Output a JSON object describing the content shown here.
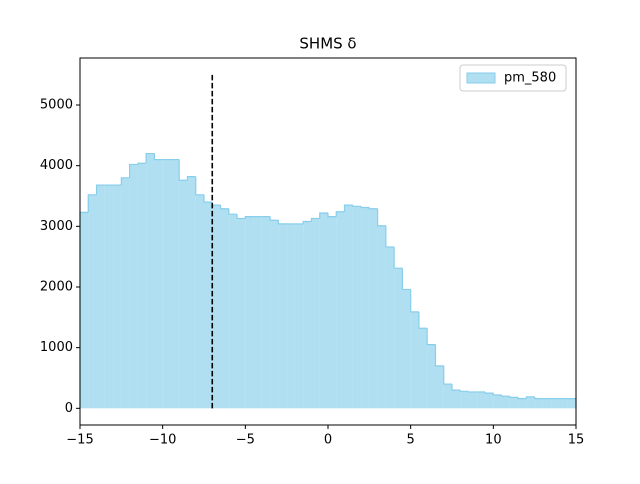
{
  "chart_data": {
    "type": "histogram",
    "title": "SHMS δ",
    "bins": [
      -15,
      -14.5,
      -14,
      -13.5,
      -13,
      -12.5,
      -12,
      -11.5,
      -11,
      -10.5,
      -10,
      -9.5,
      -9,
      -8.5,
      -8,
      -7.5,
      -7,
      -6.5,
      -6,
      -5.5,
      -5,
      -4.5,
      -4,
      -3.5,
      -3,
      -2.5,
      -2,
      -1.5,
      -1,
      -0.5,
      0,
      0.5,
      1,
      1.5,
      2,
      2.5,
      3,
      3.5,
      4,
      4.5,
      5,
      5.5,
      6,
      6.5,
      7,
      7.5,
      8,
      8.5,
      9,
      9.5,
      10,
      10.5,
      11,
      11.5,
      12,
      12.5,
      13,
      13.5,
      14,
      14.5,
      15
    ],
    "series": [
      {
        "name": "pm_580",
        "color": "#87ceeb",
        "values": [
          3230,
          3520,
          3680,
          3680,
          3680,
          3800,
          4020,
          4040,
          4200,
          4100,
          4100,
          4100,
          3760,
          3820,
          3520,
          3400,
          3350,
          3290,
          3200,
          3130,
          3160,
          3160,
          3160,
          3100,
          3040,
          3040,
          3040,
          3080,
          3130,
          3220,
          3160,
          3240,
          3350,
          3330,
          3310,
          3290,
          3010,
          2660,
          2310,
          1960,
          1590,
          1320,
          1050,
          700,
          400,
          300,
          280,
          270,
          270,
          250,
          220,
          200,
          180,
          160,
          190,
          160,
          160,
          160,
          160,
          160
        ]
      }
    ],
    "vline": {
      "x": -7,
      "ymin": 0,
      "ymax": 5500,
      "color": "#000000"
    },
    "xlim": [
      -15,
      15
    ],
    "xticks": [
      {
        "value": -15,
        "label": "−15"
      },
      {
        "value": -10,
        "label": "−10"
      },
      {
        "value": -5,
        "label": "−5"
      },
      0,
      5,
      10,
      15
    ],
    "ylim": [
      -275,
      5775
    ],
    "yticks": [
      0,
      1000,
      2000,
      3000,
      4000,
      5000
    ],
    "legend": "upper right"
  }
}
